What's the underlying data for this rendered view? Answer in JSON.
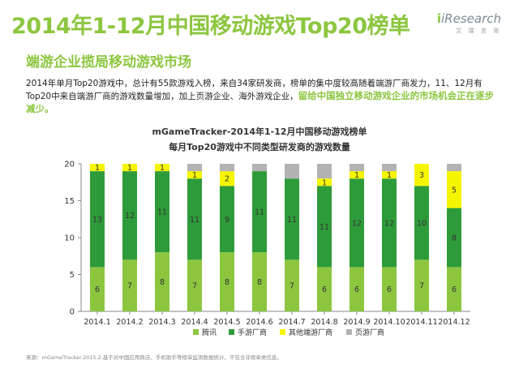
{
  "header": {
    "title": "2014年1-12月中国移动游戏Top20榜单",
    "subtitle": "端游企业揽局移动游戏市场",
    "logo_main": "iResearch",
    "logo_sub": "艾 瑞 咨 询"
  },
  "description": {
    "text": "2014年单月Top20游戏中，总计有55款游戏入榜，来自34家研发商，榜单的集中度较高随着端游厂商发力，11、12月有Top20中来自端游厂商的游戏数量增加，加上页游企业、海外游戏企业，",
    "highlight": "留给中国独立移动游戏企业的市场机会正在逐步减少。"
  },
  "chart_data": {
    "type": "bar",
    "stacked": true,
    "title": "mGameTracker-2014年1-12月中国移动游戏榜单",
    "subtitle": "每月Top20游戏中不同类型研发商的游戏数量",
    "categories": [
      "2014.1",
      "2014.2",
      "2014.3",
      "2014.4",
      "2014.5",
      "2014.6",
      "2014.7",
      "2014.8",
      "2014.9",
      "2014.10",
      "2014.11",
      "2014.12"
    ],
    "series": [
      {
        "name": "腾讯",
        "color": "#8cc63f",
        "values": [
          6,
          7,
          8,
          7,
          8,
          8,
          7,
          6,
          6,
          6,
          7,
          6
        ]
      },
      {
        "name": "手游厂商",
        "color": "#2e9b3a",
        "values": [
          13,
          12,
          11,
          11,
          9,
          11,
          11,
          11,
          12,
          12,
          10,
          8
        ]
      },
      {
        "name": "其他端游厂商",
        "color": "#f5f500",
        "values": [
          1,
          1,
          1,
          1,
          2,
          0,
          0,
          1,
          1,
          1,
          3,
          5
        ]
      },
      {
        "name": "页游厂商",
        "color": "#b3b3b3",
        "values": [
          0,
          0,
          0,
          1,
          1,
          1,
          2,
          2,
          1,
          1,
          0,
          1
        ]
      }
    ],
    "ylim": [
      0,
      20
    ],
    "yticks": [
      0,
      5,
      10,
      15,
      20
    ],
    "legend_position": "bottom"
  },
  "footer": {
    "source": "来源：mGameTracker.2015.2.基于对中国应用商店、手机助手等榜单监测数据统计，不包含非榜单类信息。"
  }
}
